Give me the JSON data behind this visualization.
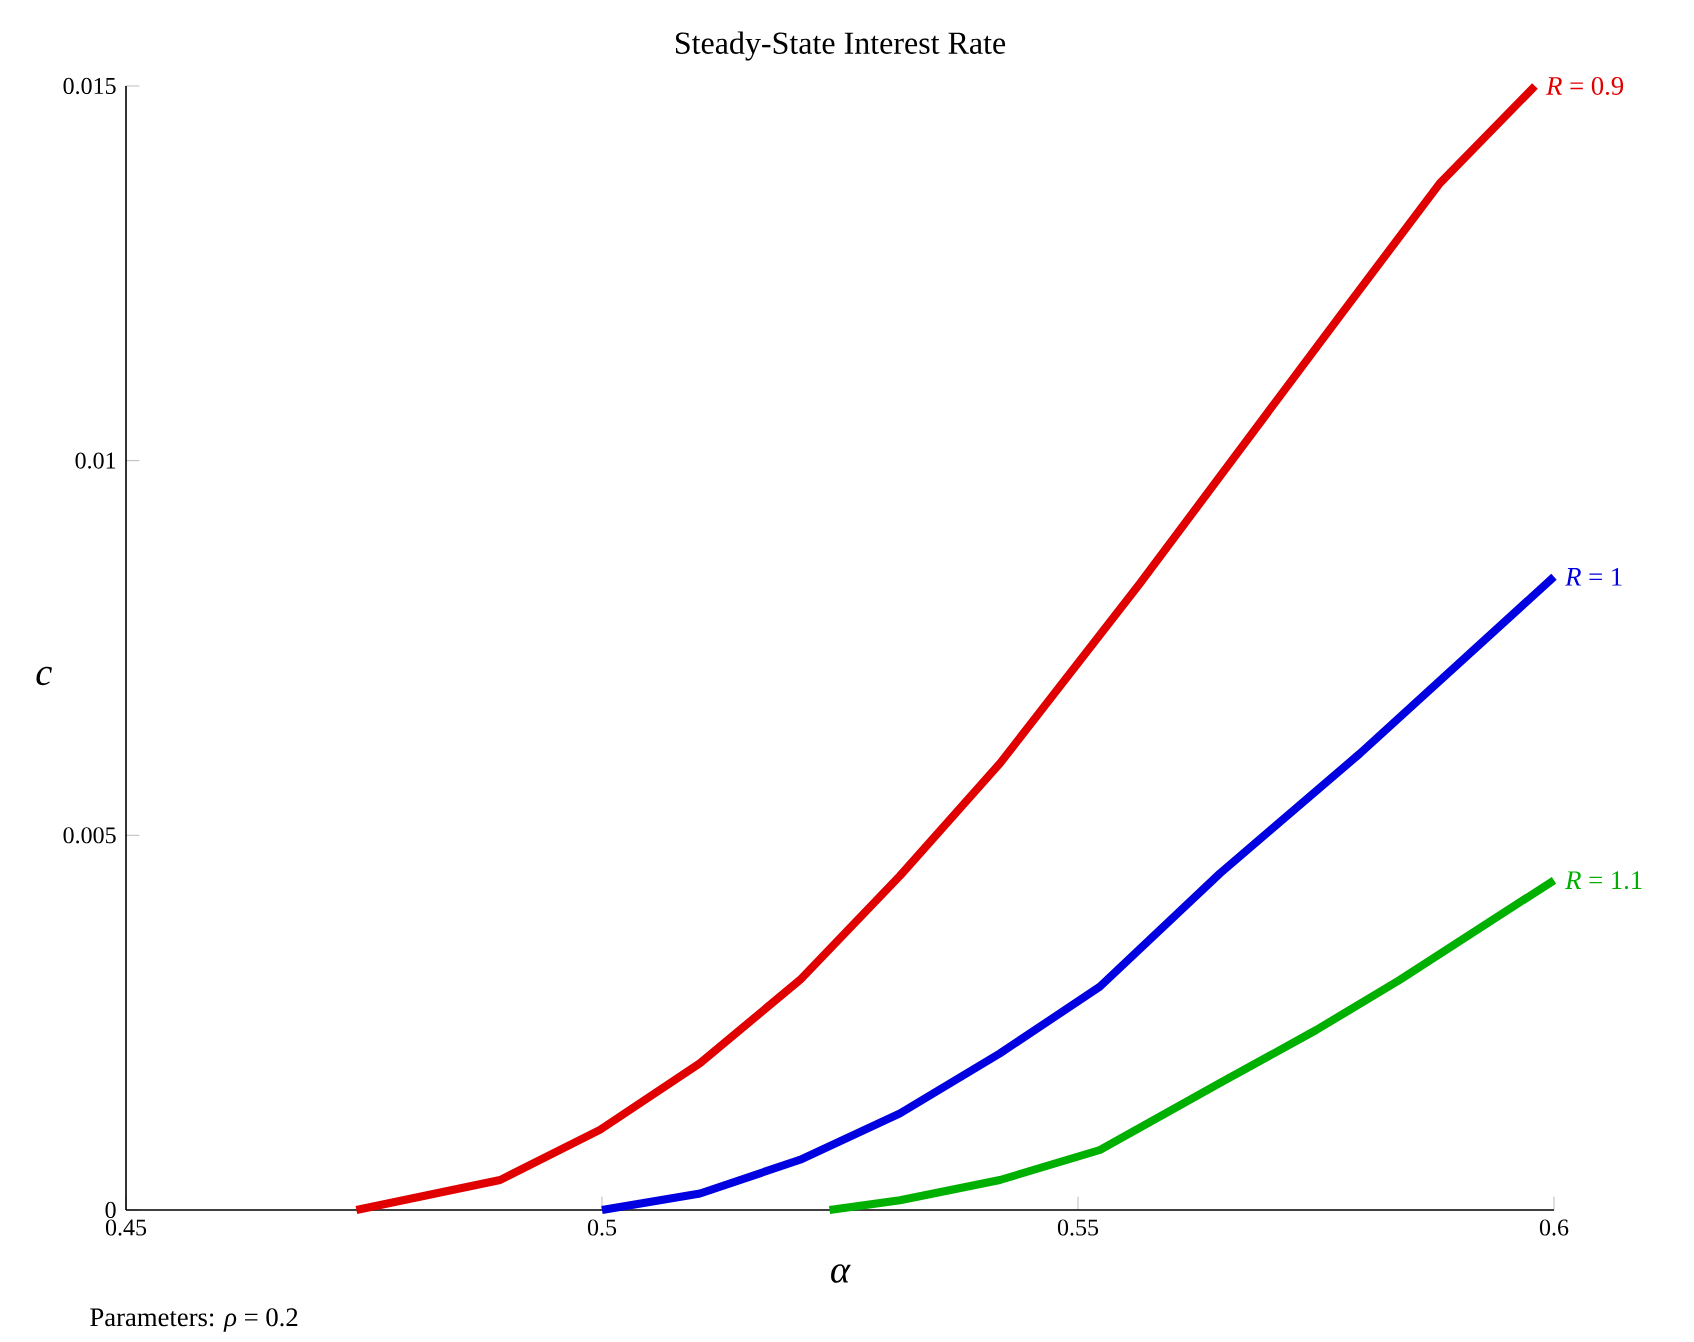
{
  "chart_data": {
    "type": "line",
    "title": "Steady-State Interest Rate",
    "xlabel": "α",
    "ylabel": "c",
    "annotations": [
      "Parameters: *ρ* = 0.2"
    ],
    "xlim": [
      0.45,
      0.6
    ],
    "ylim": [
      0,
      0.015
    ],
    "xticks": [
      0.45,
      0.5,
      0.55,
      0.6
    ],
    "yticks": [
      0,
      0.005,
      0.01,
      0.015
    ],
    "grid": false,
    "series": [
      {
        "name": "*R* = 0.9",
        "color": "#e00000",
        "x": [
          0.4742,
          0.4893,
          0.4998,
          0.5103,
          0.5208,
          0.5313,
          0.5418,
          0.5565,
          0.5775,
          0.588,
          0.598
        ],
        "values": [
          0,
          0.0004,
          0.00107,
          0.00196,
          0.00307,
          0.00446,
          0.00596,
          0.00836,
          0.01193,
          0.0137,
          0.015
        ]
      },
      {
        "name": "*R* = 1",
        "color": "#0000e0",
        "x": [
          0.5,
          0.5103,
          0.5208,
          0.5313,
          0.5418,
          0.5523,
          0.5649,
          0.5796,
          0.6
        ],
        "values": [
          0,
          0.00022,
          0.00067,
          0.00129,
          0.00209,
          0.00298,
          0.00449,
          0.00609,
          0.00845
        ]
      },
      {
        "name": "*R* = 1.1",
        "color": "#00b000",
        "x": [
          0.5239,
          0.5313,
          0.5418,
          0.5523,
          0.565,
          0.575,
          0.5838,
          0.6
        ],
        "values": [
          0,
          0.00013,
          0.0004,
          0.0008,
          0.0017,
          0.0024,
          0.00307,
          0.0044
        ]
      }
    ]
  }
}
